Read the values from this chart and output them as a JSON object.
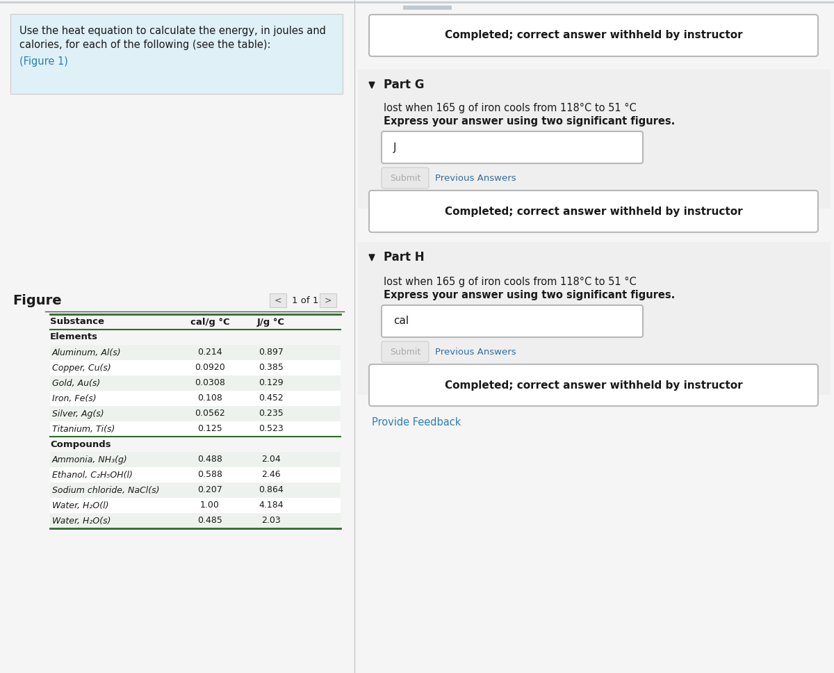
{
  "bg_color": "#f5f5f5",
  "white": "#ffffff",
  "left_panel_bg": "#dff0f7",
  "border_color": "#cccccc",
  "teal_color": "#2980b9",
  "dark_text": "#1a1a1a",
  "submit_bg": "#e8e8e8",
  "submit_text": "#aaaaaa",
  "prev_ans_color": "#2e6da4",
  "table_header_line": "#2d6b2d",
  "table_row_light": "#eef2ee",
  "table_row_white": "#ffffff",
  "question_text_line1": "Use the heat equation to calculate the energy, in joules and",
  "question_text_line2": "calories, for each of the following (see the table):",
  "question_text_line3": "(Figure 1)",
  "figure_label": "Figure",
  "nav_text": "1 of 1",
  "table_col1_header": "Substance",
  "table_col2_header": "cal/g °C",
  "table_col3_header": "J/g °C",
  "section1_label": "Elements",
  "section2_label": "Compounds",
  "elements_rows": [
    [
      "Aluminum, Al(s)",
      "0.214",
      "0.897"
    ],
    [
      "Copper, Cu(s)",
      "0.0920",
      "0.385"
    ],
    [
      "Gold, Au(s)",
      "0.0308",
      "0.129"
    ],
    [
      "Iron, Fe(s)",
      "0.108",
      "0.452"
    ],
    [
      "Silver, Ag(s)",
      "0.0562",
      "0.235"
    ],
    [
      "Titanium, Ti(s)",
      "0.125",
      "0.523"
    ]
  ],
  "compounds_rows": [
    [
      "Ammonia, NH₃(g)",
      "0.488",
      "2.04"
    ],
    [
      "Ethanol, C₂H₅OH(l)",
      "0.588",
      "2.46"
    ],
    [
      "Sodium chloride, NaCl(s)",
      "0.207",
      "0.864"
    ],
    [
      "Water, H₂O(l)",
      "1.00",
      "4.184"
    ],
    [
      "Water, H₂O(s)",
      "0.485",
      "2.03"
    ]
  ],
  "completed_text": "Completed; correct answer withheld by instructor",
  "part_g_label": "Part G",
  "part_h_label": "Part H",
  "part_g_desc1": "lost when 165 g of iron cools from 118°C to 51 °C",
  "part_g_desc2": "Express your answer using two significant figures.",
  "part_h_desc1": "lost when 165 g of iron cools from 118°C to 51 °C",
  "part_h_desc2": "Express your answer using two significant figures.",
  "input_g_text": "J",
  "input_h_text": "cal",
  "submit_label": "Submit",
  "prev_ans_label": "Previous Answers",
  "provide_feedback": "Provide Feedback",
  "right_section_bg": "#efefef",
  "nav_arrow_bg": "#e8e8e8",
  "scroll_indicator_color": "#c0c8d0",
  "divider_color": "#c8c8c8",
  "rounded_box_border": "#b8b8b8"
}
